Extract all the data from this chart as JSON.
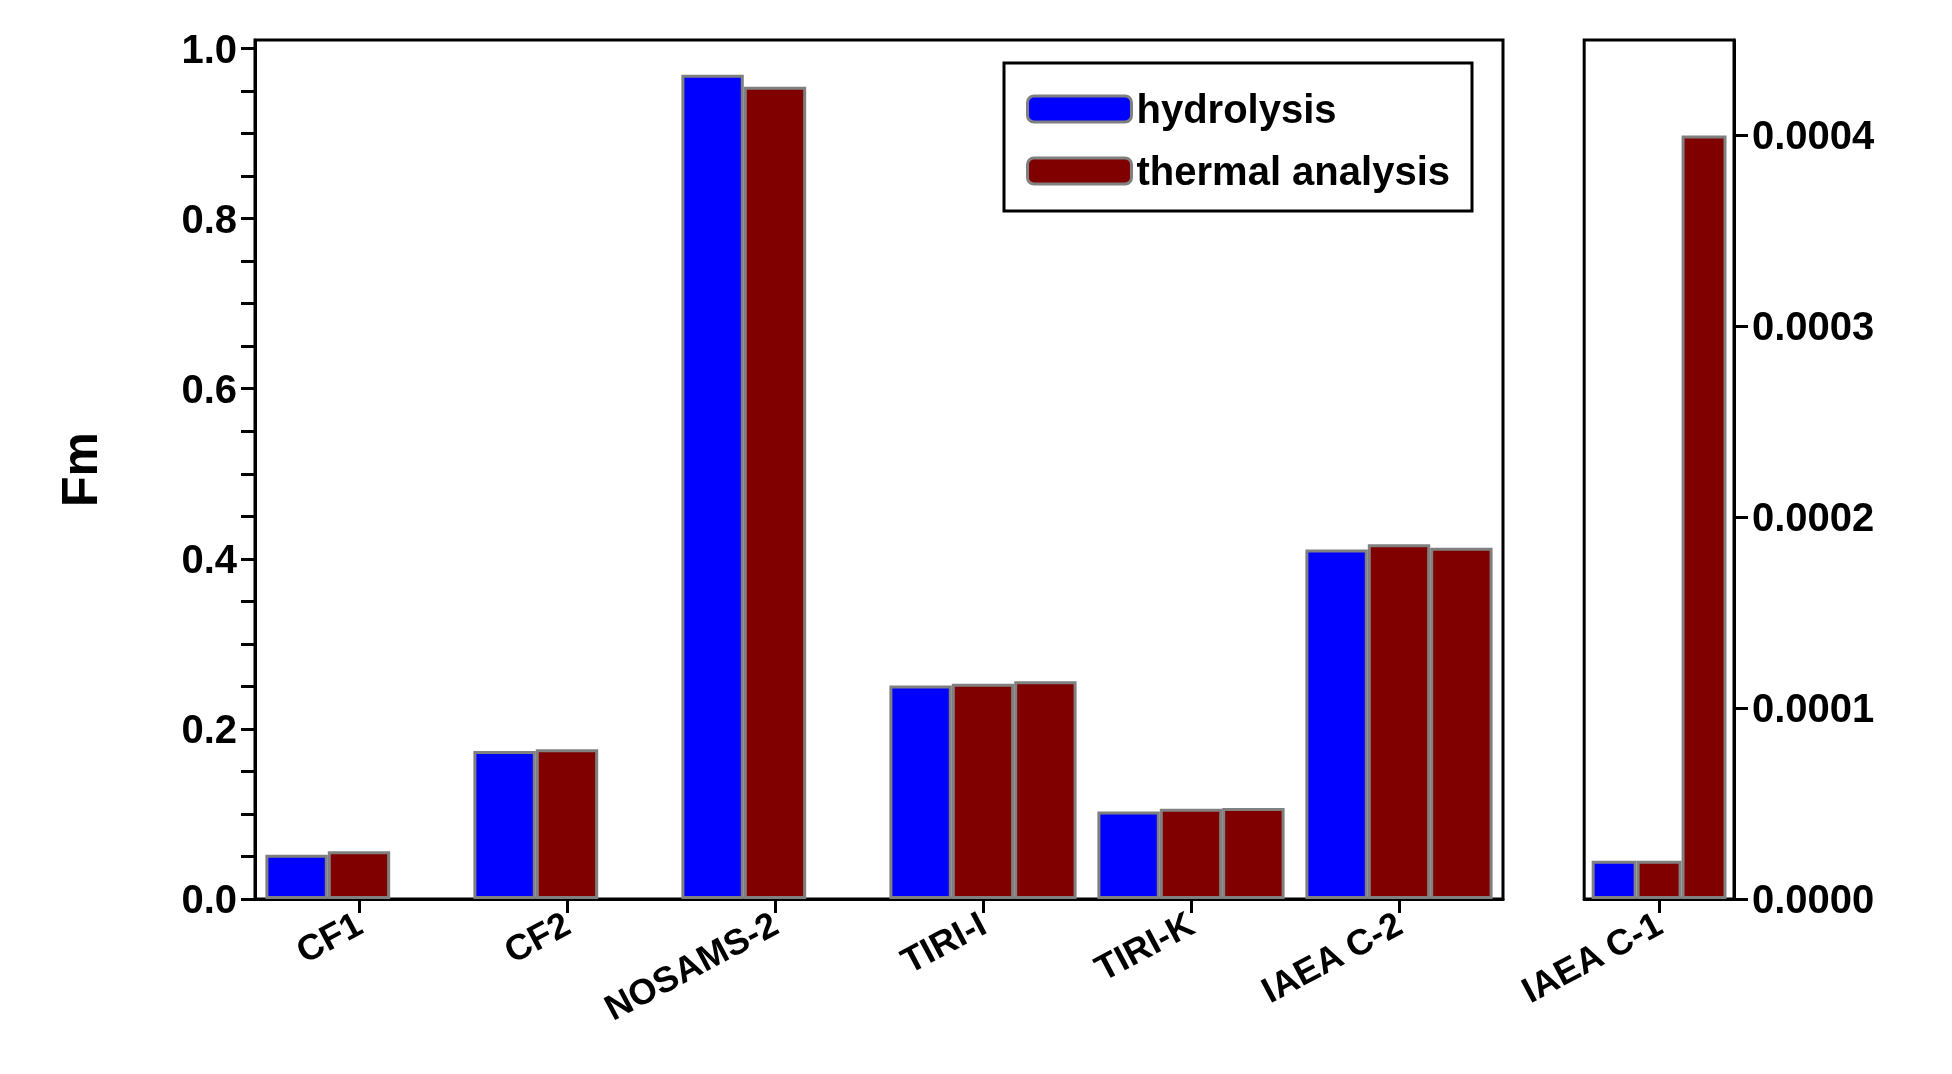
{
  "chart_data": [
    {
      "type": "bar",
      "ylabel": "Fm",
      "categories": [
        "CF1",
        "CF2",
        "NOSAMS-2",
        "TIRI-I",
        "TIRI-K",
        "IAEA C-2"
      ],
      "series": [
        {
          "name": "hydrolysis",
          "color": "#0000ff",
          "values": [
            0.052,
            0.174,
            0.969,
            0.251,
            0.103,
            0.411
          ]
        },
        {
          "name": "thermal analysis",
          "color": "#800000",
          "values": [
            0.056,
            0.176,
            0.955,
            0.253,
            0.106,
            0.417
          ]
        },
        {
          "color": "#800000",
          "values": [
            null,
            null,
            null,
            0.256,
            0.107,
            0.413
          ]
        }
      ],
      "ylim": [
        0,
        1.01
      ],
      "yticks": [
        {
          "value": 0,
          "label": "0.0"
        },
        {
          "value": 0.05,
          "label": null
        },
        {
          "value": 0.1,
          "label": null
        },
        {
          "value": 0.15,
          "label": null
        },
        {
          "value": 0.2,
          "label": "0.2"
        },
        {
          "value": 0.25,
          "label": null
        },
        {
          "value": 0.3,
          "label": null
        },
        {
          "value": 0.35,
          "label": null
        },
        {
          "value": 0.4,
          "label": "0.4"
        },
        {
          "value": 0.45,
          "label": null
        },
        {
          "value": 0.5,
          "label": null
        },
        {
          "value": 0.55,
          "label": null
        },
        {
          "value": 0.6,
          "label": "0.6"
        },
        {
          "value": 0.65,
          "label": null
        },
        {
          "value": 0.7,
          "label": null
        },
        {
          "value": 0.75,
          "label": null
        },
        {
          "value": 0.8,
          "label": "0.8"
        },
        {
          "value": 0.85,
          "label": null
        },
        {
          "value": 0.9,
          "label": null
        },
        {
          "value": 0.95,
          "label": null
        },
        {
          "value": 1,
          "label": "1.0"
        }
      ],
      "grid": false,
      "legend": "top right"
    },
    {
      "type": "bar",
      "categories": [
        "IAEA C-1"
      ],
      "series": [
        {
          "color": "#0000ff",
          "axis": "y2",
          "values": [
            2e-05
          ]
        },
        {
          "color": "#800000",
          "axis": "y2",
          "values": [
            2e-05
          ]
        },
        {
          "color": "#800000",
          "axis": "y2",
          "values": [
            0.0004
          ]
        }
      ],
      "y2lim": [
        0,
        0.00045
      ],
      "y2ticks": [
        {
          "value": 0,
          "label": "0.0000"
        },
        {
          "value": 0.0001,
          "label": "0.0001"
        },
        {
          "value": 0.0002,
          "label": "0.0002"
        },
        {
          "value": 0.0003,
          "label": "0.0003"
        },
        {
          "value": 0.0004,
          "label": "0.0004"
        }
      ],
      "grid": false,
      "legend": false
    }
  ]
}
